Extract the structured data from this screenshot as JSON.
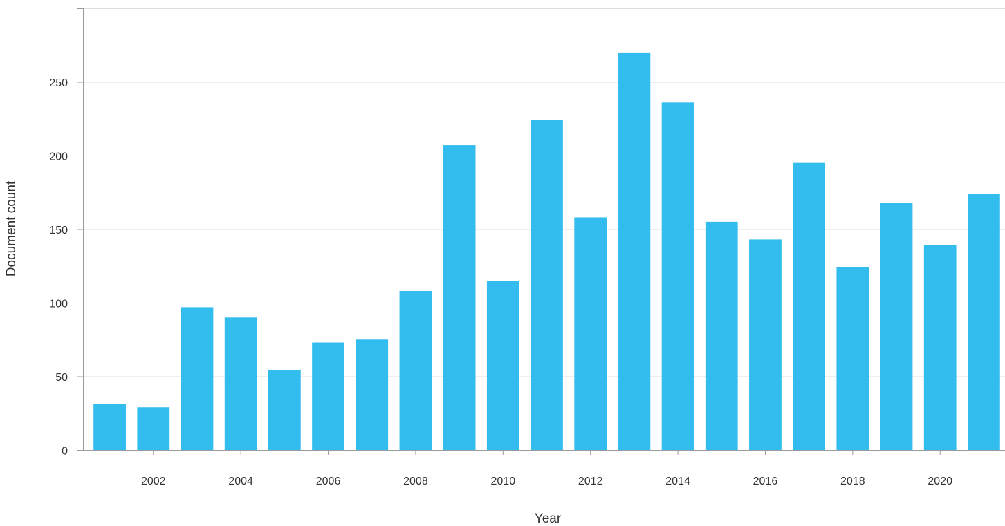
{
  "chart_data": {
    "type": "bar",
    "categories": [
      "2001",
      "2002",
      "2003",
      "2004",
      "2005",
      "2006",
      "2007",
      "2008",
      "2009",
      "2010",
      "2011",
      "2012",
      "2013",
      "2014",
      "2015",
      "2016",
      "2017",
      "2018",
      "2019",
      "2020",
      "2021"
    ],
    "values": [
      31,
      29,
      97,
      90,
      54,
      73,
      75,
      108,
      207,
      115,
      224,
      158,
      270,
      236,
      155,
      143,
      195,
      124,
      168,
      139,
      174
    ],
    "x_tick_labels": [
      "2002",
      "2004",
      "2006",
      "2008",
      "2010",
      "2012",
      "2014",
      "2016",
      "2018",
      "2020"
    ],
    "y_ticks": [
      0,
      50,
      100,
      150,
      200,
      250
    ],
    "ylim": [
      0,
      300
    ],
    "xlabel": "Year",
    "ylabel": "Document count",
    "grid": true,
    "bar_color": "#33bdee"
  }
}
